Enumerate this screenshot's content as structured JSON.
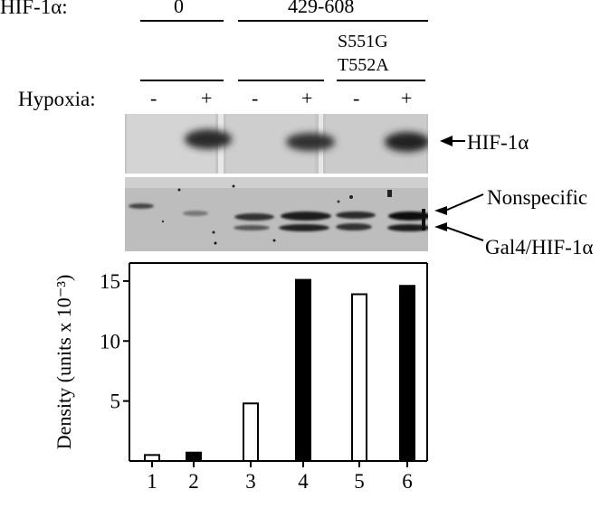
{
  "header": {
    "row_label": "HIF-1α:",
    "group_control": "0",
    "group_construct": "429-608",
    "mutant_line1": "S551G",
    "mutant_line2": "T552A",
    "hypoxia_label": "Hypoxia:",
    "hypoxia_signs": [
      "-",
      "+",
      "-",
      "+",
      "-",
      "+"
    ]
  },
  "blot_labels": {
    "hif": "HIF-1α",
    "nonspecific": "Nonspecific",
    "gal4": "Gal4/HIF-1α"
  },
  "colors": {
    "open_bar": "#ffffff",
    "filled_bar": "#000000",
    "axis": "#000000"
  },
  "chart_data": {
    "type": "bar",
    "categories": [
      "1",
      "2",
      "3",
      "4",
      "5",
      "6"
    ],
    "values": [
      0.5,
      0.7,
      4.8,
      15.1,
      13.9,
      14.6
    ],
    "bar_fill": [
      "open",
      "filled",
      "open",
      "filled",
      "open",
      "filled"
    ],
    "ylabel": "Density (units x 10⁻³)",
    "xlabel": "",
    "ylim": [
      0,
      16.5
    ],
    "yticks": [
      5,
      10,
      15
    ],
    "grid": false
  }
}
